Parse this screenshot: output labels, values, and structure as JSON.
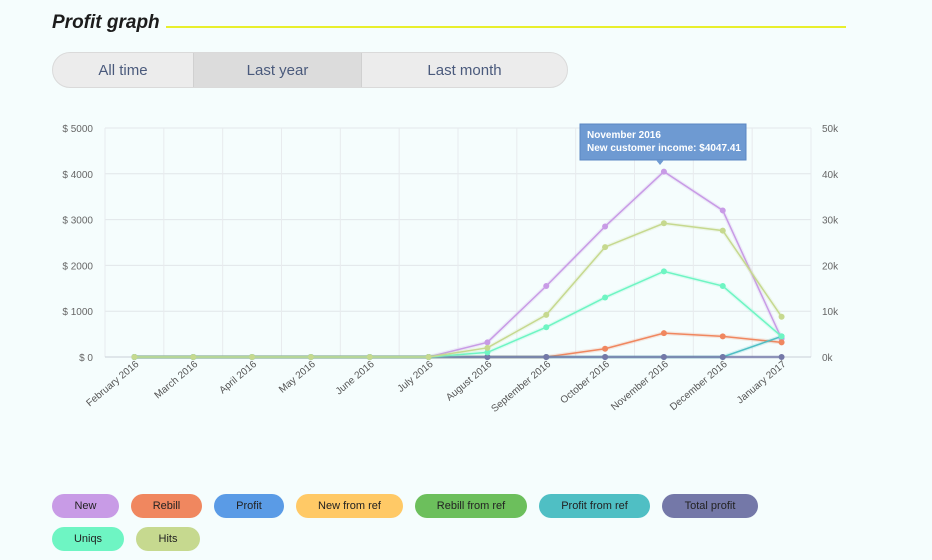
{
  "header": {
    "title": "Profit graph"
  },
  "tabs": [
    {
      "label": "All time"
    },
    {
      "label": "Last year",
      "active": true
    },
    {
      "label": "Last month"
    }
  ],
  "tooltip": {
    "line1": "November 2016",
    "line2": "New customer income: $4047.41"
  },
  "legend": [
    {
      "label": "New",
      "color": "#c89be6"
    },
    {
      "label": "Rebill",
      "color": "#f0875f"
    },
    {
      "label": "Profit",
      "color": "#5a9be6"
    },
    {
      "label": "New from ref",
      "color": "#ffc966"
    },
    {
      "label": "Rebill from ref",
      "color": "#6cbf5c"
    },
    {
      "label": "Profit from ref",
      "color": "#4fbfc4"
    },
    {
      "label": "Total profit",
      "color": "#7478a8"
    },
    {
      "label": "Uniqs",
      "color": "#6ef5c3"
    },
    {
      "label": "Hits",
      "color": "#c6d98f"
    }
  ],
  "chart_data": {
    "type": "line",
    "title": "Profit graph",
    "categories": [
      "February 2016",
      "March 2016",
      "April 2016",
      "May 2016",
      "June 2016",
      "July 2016",
      "August 2016",
      "September 2016",
      "October 2016",
      "November 2016",
      "December 2016",
      "January 2017"
    ],
    "y_left": {
      "ticks": [
        "$ 0",
        "$ 1000",
        "$ 2000",
        "$ 3000",
        "$ 4000",
        "$ 5000"
      ],
      "range": [
        0,
        5000
      ]
    },
    "y_right": {
      "ticks": [
        "0k",
        "10k",
        "20k",
        "30k",
        "40k",
        "50k"
      ],
      "range": [
        0,
        50000
      ]
    },
    "series": [
      {
        "name": "New",
        "color": "#c89be6",
        "axis": "left",
        "values": [
          0,
          0,
          0,
          0,
          0,
          0,
          320,
          1550,
          2850,
          4047.41,
          3200,
          400
        ]
      },
      {
        "name": "Rebill",
        "color": "#f0875f",
        "axis": "left",
        "values": [
          0,
          0,
          0,
          0,
          0,
          0,
          0,
          0,
          180,
          520,
          450,
          320
        ]
      },
      {
        "name": "Profit from ref",
        "color": "#4fbfc4",
        "axis": "left",
        "values": [
          0,
          0,
          0,
          0,
          0,
          0,
          0,
          0,
          0,
          0,
          0,
          450
        ]
      },
      {
        "name": "Total profit",
        "color": "#7478a8",
        "axis": "left",
        "values": [
          0,
          0,
          0,
          0,
          0,
          0,
          0,
          0,
          0,
          0,
          0,
          0
        ]
      },
      {
        "name": "Uniqs",
        "color": "#6ef5c3",
        "axis": "right",
        "values": [
          0,
          0,
          0,
          0,
          0,
          0,
          1000,
          6500,
          13000,
          18700,
          15500,
          4500
        ]
      },
      {
        "name": "Hits",
        "color": "#c6d98f",
        "axis": "right",
        "values": [
          0,
          0,
          0,
          0,
          0,
          0,
          2000,
          9200,
          24000,
          29200,
          27600,
          8800
        ]
      }
    ]
  }
}
